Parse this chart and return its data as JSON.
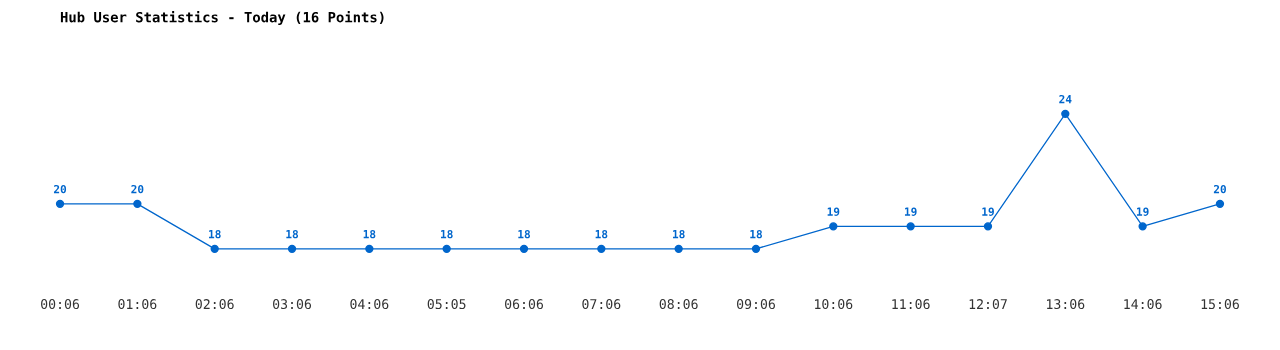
{
  "chart_data": {
    "type": "line",
    "title": "Hub User Statistics - Today (16 Points)",
    "categories": [
      "00:06",
      "01:06",
      "02:06",
      "03:06",
      "04:06",
      "05:05",
      "06:06",
      "07:06",
      "08:06",
      "09:06",
      "10:06",
      "11:06",
      "12:07",
      "13:06",
      "14:06",
      "15:06"
    ],
    "series": [
      {
        "color": "#0066cc",
        "values": [
          20,
          20,
          18,
          18,
          18,
          18,
          18,
          18,
          18,
          18,
          19,
          19,
          19,
          24,
          19,
          20
        ]
      }
    ],
    "data_labels": true,
    "marker": "circle",
    "line_style": "solid",
    "grid": false,
    "tick_labels": "x"
  }
}
